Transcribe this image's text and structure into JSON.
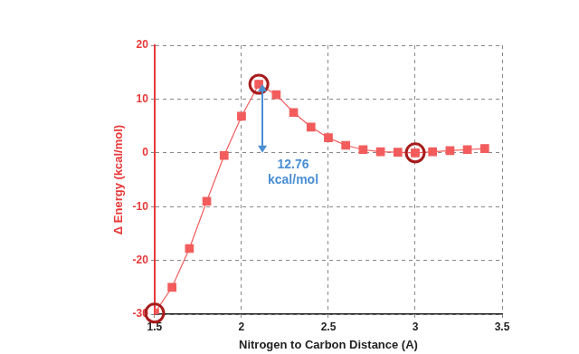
{
  "chart_data": {
    "type": "line",
    "x_label": "Nitrogen to Carbon Distance (A)",
    "y_label": "Δ Energy (kcal/mol)",
    "x": [
      1.5,
      1.6,
      1.7,
      1.8,
      1.9,
      2.0,
      2.1,
      2.2,
      2.3,
      2.4,
      2.5,
      2.6,
      2.7,
      2.8,
      2.9,
      3.0,
      3.1,
      3.2,
      3.3,
      3.4
    ],
    "values": [
      -29.8,
      -25,
      -17.8,
      -9,
      -0.5,
      6.8,
      12.76,
      10.8,
      7.5,
      4.8,
      2.8,
      1.4,
      0.6,
      0.2,
      0.1,
      0,
      0.2,
      0.4,
      0.6,
      0.8
    ],
    "color": "#f25c5c",
    "marker": "square",
    "xlim": [
      1.5,
      3.5
    ],
    "xticks": [
      1.5,
      2,
      2.5,
      3,
      3.5
    ],
    "ylim": [
      -30,
      20
    ],
    "yticks": [
      -30,
      -20,
      -10,
      0,
      10,
      20
    ],
    "grid": true,
    "highlighted_x": [
      1.5,
      2.1,
      3.0
    ],
    "annotations": [
      {
        "text": [
          "12.76",
          "kcal/mol"
        ],
        "arrow_x": 2.12,
        "arrow_from": 0,
        "arrow_to": 12.76
      }
    ]
  }
}
